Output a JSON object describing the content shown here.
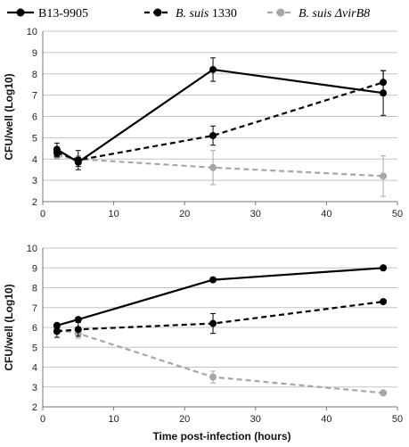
{
  "legend": [
    {
      "series_index": 0,
      "prefix": "B13-9905",
      "italic": "",
      "suffix": ""
    },
    {
      "series_index": 1,
      "prefix": "",
      "italic": "B. suis",
      "suffix": " 1330"
    },
    {
      "series_index": 2,
      "prefix": "",
      "italic": "B. suis ΔvirB8",
      "suffix": ""
    }
  ],
  "styles": [
    {
      "color": "#000000",
      "dash": "none"
    },
    {
      "color": "#000000",
      "dash": "dashed"
    },
    {
      "color": "#a6a6a6",
      "dash": "dashed"
    }
  ],
  "chart_data": [
    {
      "type": "line",
      "xlabel": "",
      "ylabel": "CFU/well (Log10)",
      "xlim": [
        0,
        50
      ],
      "ylim": [
        2,
        10
      ],
      "xticks": [
        0,
        10,
        20,
        30,
        40,
        50
      ],
      "yticks": [
        2,
        3,
        4,
        5,
        6,
        7,
        8,
        9,
        10
      ],
      "grid": "horizontal",
      "series": [
        {
          "name": "B13-9905",
          "x": [
            2,
            5,
            24,
            48
          ],
          "y": [
            4.45,
            3.85,
            8.2,
            7.1
          ],
          "err": [
            0.3,
            0.2,
            0.55,
            1.05
          ]
        },
        {
          "name": "B. suis 1330",
          "x": [
            2,
            5,
            24,
            48
          ],
          "y": [
            4.3,
            3.95,
            5.1,
            7.6
          ],
          "err": [
            0.2,
            0.45,
            0.45,
            0.55
          ]
        },
        {
          "name": "B. suis ΔvirB8",
          "x": [
            2,
            5,
            24,
            48
          ],
          "y": [
            4.15,
            4.0,
            3.6,
            3.2
          ],
          "err": [
            0.15,
            0.15,
            0.8,
            0.95
          ]
        }
      ]
    },
    {
      "type": "line",
      "xlabel": "Time post-infection (hours)",
      "ylabel": "CFU/well (Log10)",
      "xlim": [
        0,
        50
      ],
      "ylim": [
        2,
        10
      ],
      "xticks": [
        0,
        10,
        20,
        30,
        40,
        50
      ],
      "yticks": [
        2,
        3,
        4,
        5,
        6,
        7,
        8,
        9,
        10
      ],
      "grid": "horizontal",
      "series": [
        {
          "name": "B13-9905",
          "x": [
            2,
            5,
            24,
            48
          ],
          "y": [
            6.1,
            6.4,
            8.4,
            9.0
          ],
          "err": [
            0.1,
            0.1,
            0.1,
            0.1
          ]
        },
        {
          "name": "B. suis 1330",
          "x": [
            2,
            5,
            24,
            48
          ],
          "y": [
            5.8,
            5.9,
            6.2,
            7.3
          ],
          "err": [
            0.3,
            0.35,
            0.5,
            0.1
          ]
        },
        {
          "name": "B. suis ΔvirB8",
          "x": [
            2,
            5,
            24,
            48
          ],
          "y": [
            5.9,
            5.7,
            3.5,
            2.7
          ],
          "err": [
            0.15,
            0.25,
            0.3,
            0.1
          ]
        }
      ]
    }
  ]
}
